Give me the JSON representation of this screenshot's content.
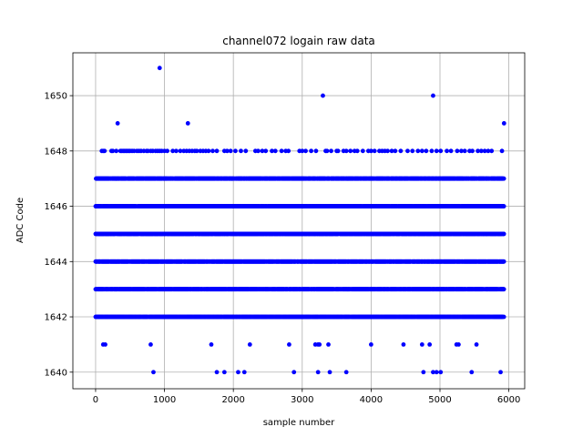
{
  "chart_data": {
    "type": "scatter",
    "title": "channel072 logain raw data",
    "xlabel": "sample number",
    "ylabel": "ADC Code",
    "xlim": [
      -330,
      6230
    ],
    "ylim": [
      1639.4,
      1651.55
    ],
    "xticks": [
      0,
      1000,
      2000,
      3000,
      4000,
      5000,
      6000
    ],
    "yticks": [
      1640,
      1642,
      1644,
      1646,
      1648,
      1650
    ],
    "grid": true,
    "marker_color": "#0000ff",
    "dense_bands": [
      {
        "y": 1642,
        "x_range": [
          0,
          5930
        ]
      },
      {
        "y": 1643,
        "x_range": [
          0,
          5930
        ]
      },
      {
        "y": 1644,
        "x_range": [
          0,
          5930
        ]
      },
      {
        "y": 1645,
        "x_range": [
          0,
          5930
        ]
      },
      {
        "y": 1646,
        "x_range": [
          0,
          5930
        ]
      },
      {
        "y": 1647,
        "x_range": [
          0,
          5930
        ]
      }
    ],
    "sparse_points": [
      {
        "y": 1648,
        "x": [
          90,
          110,
          130,
          230,
          250,
          300,
          360,
          380,
          400,
          420,
          440,
          460,
          480,
          500,
          530,
          560,
          600,
          630,
          660,
          700,
          740,
          760,
          800,
          830,
          870,
          900,
          930,
          960,
          1000,
          1040,
          1120,
          1170,
          1230,
          1280,
          1320,
          1360,
          1400,
          1440,
          1470,
          1520,
          1560,
          1600,
          1640,
          1700,
          1760,
          1870,
          1910,
          1960,
          2030,
          2110,
          2180,
          2320,
          2360,
          2420,
          2470,
          2560,
          2610,
          2700,
          2760,
          2800,
          2960,
          3000,
          3050,
          3130,
          3200,
          3340,
          3360,
          3420,
          3500,
          3520,
          3600,
          3640,
          3700,
          3760,
          3800,
          3880,
          3960,
          4000,
          4050,
          4120,
          4160,
          4200,
          4240,
          4300,
          4350,
          4430,
          4530,
          4600,
          4680,
          4740,
          4800,
          4880,
          4950,
          5010,
          5100,
          5160,
          5250,
          5310,
          5360,
          5430,
          5470,
          5550,
          5600,
          5650,
          5700,
          5750,
          5900
        ]
      },
      {
        "y": 1649,
        "x": [
          320,
          1340,
          5930
        ]
      },
      {
        "y": 1650,
        "x": [
          3300,
          4900
        ]
      },
      {
        "y": 1651,
        "x": [
          930
        ]
      },
      {
        "y": 1641,
        "x": [
          110,
          140,
          800,
          1680,
          2240,
          2810,
          3190,
          3230,
          3250,
          3380,
          4000,
          4470,
          4740,
          4850,
          5240,
          5270,
          5530
        ]
      },
      {
        "y": 1640,
        "x": [
          840,
          1760,
          1870,
          2070,
          2160,
          2880,
          3230,
          3400,
          3640,
          4760,
          4900,
          4950,
          5010,
          5460,
          5880
        ]
      }
    ]
  }
}
